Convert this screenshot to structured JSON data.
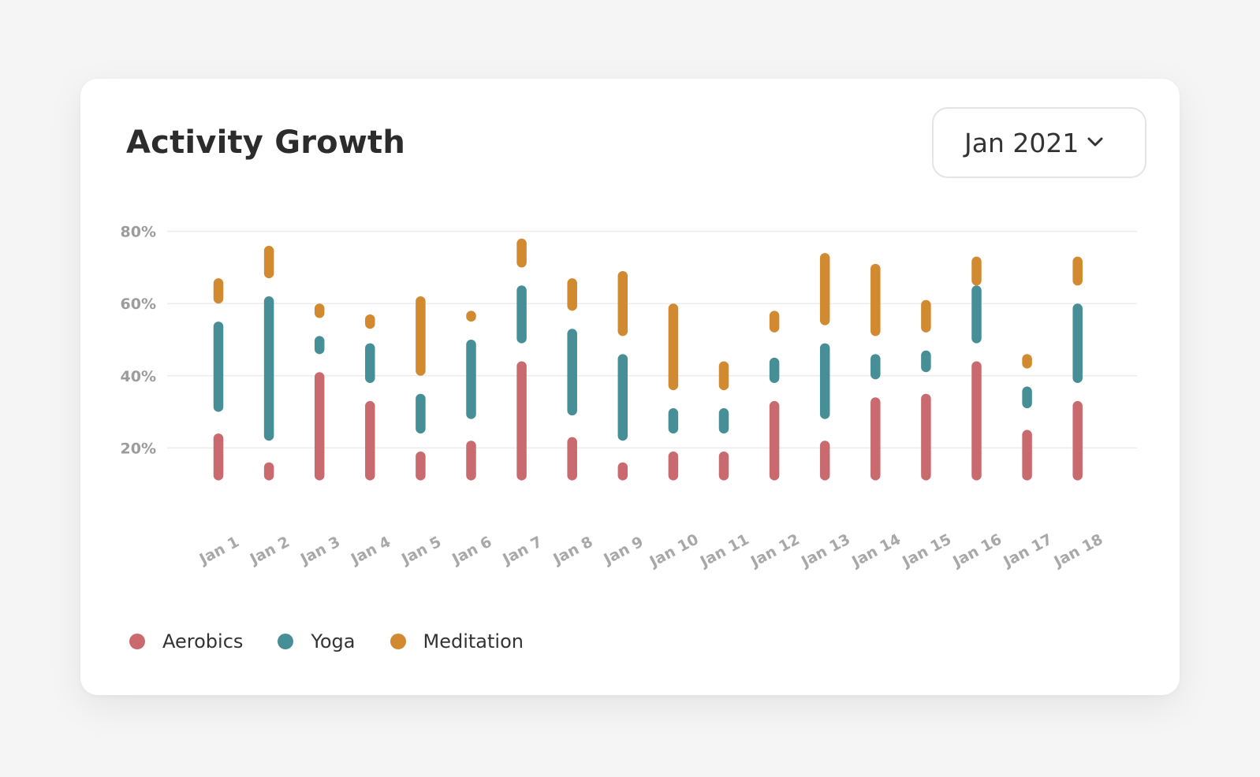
{
  "card": {
    "title": "Activity Growth"
  },
  "month_select": {
    "value": "Jan 2021",
    "icon": "chevron-down-icon"
  },
  "chart_data": {
    "type": "bar",
    "subtype": "floating-stacked-segments",
    "categories": [
      "Jan 1",
      "Jan 2",
      "Jan 3",
      "Jan 4",
      "Jan 5",
      "Jan 6",
      "Jan 7",
      "Jan 8",
      "Jan 9",
      "Jan 10",
      "Jan 11",
      "Jan 12",
      "Jan 13",
      "Jan 14",
      "Jan 15",
      "Jan 16",
      "Jan 17",
      "Jan 18"
    ],
    "y_ticks": [
      "20%",
      "40%",
      "60%",
      "80%"
    ],
    "ylim": [
      10,
      80
    ],
    "grid": true,
    "legend_position": "bottom-left",
    "series": [
      {
        "name": "Aerobics",
        "color": "#c96a6f",
        "ranges": [
          [
            11,
            24
          ],
          [
            11,
            16
          ],
          [
            11,
            41
          ],
          [
            11,
            33
          ],
          [
            11,
            19
          ],
          [
            11,
            22
          ],
          [
            11,
            44
          ],
          [
            11,
            23
          ],
          [
            11,
            16
          ],
          [
            11,
            19
          ],
          [
            11,
            19
          ],
          [
            11,
            33
          ],
          [
            11,
            22
          ],
          [
            11,
            34
          ],
          [
            11,
            35
          ],
          [
            11,
            44
          ],
          [
            11,
            25
          ],
          [
            11,
            33
          ]
        ]
      },
      {
        "name": "Yoga",
        "color": "#468f96",
        "ranges": [
          [
            30,
            55
          ],
          [
            22,
            62
          ],
          [
            46,
            51
          ],
          [
            38,
            49
          ],
          [
            24,
            35
          ],
          [
            28,
            50
          ],
          [
            49,
            65
          ],
          [
            29,
            53
          ],
          [
            22,
            46
          ],
          [
            24,
            31
          ],
          [
            24,
            31
          ],
          [
            38,
            45
          ],
          [
            28,
            49
          ],
          [
            39,
            46
          ],
          [
            41,
            47
          ],
          [
            49,
            65
          ],
          [
            31,
            37
          ],
          [
            38,
            60
          ]
        ]
      },
      {
        "name": "Meditation",
        "color": "#d18a2f",
        "ranges": [
          [
            60,
            67
          ],
          [
            67,
            76
          ],
          [
            56,
            60
          ],
          [
            53,
            57
          ],
          [
            40,
            62
          ],
          [
            55,
            58
          ],
          [
            70,
            78
          ],
          [
            58,
            67
          ],
          [
            51,
            69
          ],
          [
            36,
            60
          ],
          [
            36,
            44
          ],
          [
            52,
            58
          ],
          [
            54,
            74
          ],
          [
            51,
            71
          ],
          [
            52,
            61
          ],
          [
            65,
            73
          ],
          [
            42,
            46
          ],
          [
            65,
            73
          ]
        ]
      }
    ]
  },
  "legend": {
    "items": [
      {
        "label": "Aerobics",
        "color": "#c96a6f"
      },
      {
        "label": "Yoga",
        "color": "#468f96"
      },
      {
        "label": "Meditation",
        "color": "#d18a2f"
      }
    ]
  }
}
